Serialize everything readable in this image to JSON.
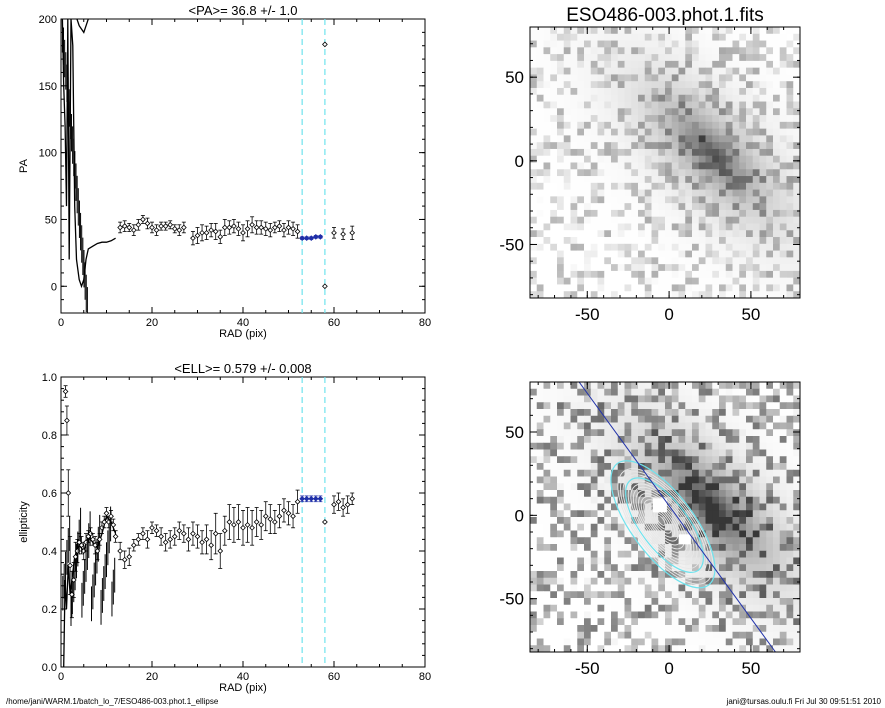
{
  "footer": {
    "path": "/home/jani/WARM.1/batch_lo_7/ESO486-003.phot.1_ellipse",
    "user_timestamp": "jani@tursas.oulu.fi  Fri Jul 30 09:51:51 2010"
  },
  "chart_data": [
    {
      "type": "scatter",
      "title": "<PA>=  36.8 +/-   1.0",
      "xlabel": "RAD (pix)",
      "ylabel": "PA",
      "xlim": [
        0,
        80
      ],
      "ylim": [
        -20,
        200
      ],
      "xticks": [
        0,
        20,
        40,
        60,
        80
      ],
      "yticks": [
        0,
        50,
        100,
        150,
        200
      ],
      "vlines": [
        53,
        58
      ],
      "series": [
        {
          "x": [
            13,
            14,
            15,
            16,
            17,
            18,
            19,
            20,
            21,
            22,
            23,
            24,
            25,
            26,
            27,
            29,
            30,
            31,
            32,
            33,
            34,
            35,
            36,
            37,
            38,
            39,
            40,
            41,
            42,
            43,
            44,
            45,
            46,
            47,
            48,
            49,
            50,
            51,
            52,
            60,
            62,
            64
          ],
          "y": [
            44,
            45,
            44,
            42,
            46,
            50,
            47,
            44,
            42,
            45,
            45,
            46,
            43,
            42,
            44,
            36,
            38,
            40,
            40,
            42,
            41,
            37,
            44,
            44,
            45,
            43,
            40,
            43,
            46,
            44,
            44,
            43,
            42,
            44,
            45,
            42,
            44,
            43,
            41,
            40,
            39,
            40
          ],
          "err": [
            4,
            4,
            3,
            4,
            4,
            3,
            4,
            4,
            4,
            3,
            3,
            3,
            3,
            4,
            4,
            5,
            6,
            6,
            5,
            5,
            6,
            5,
            6,
            5,
            5,
            5,
            6,
            6,
            6,
            5,
            5,
            5,
            5,
            4,
            4,
            5,
            5,
            5,
            5,
            4,
            4,
            5
          ]
        },
        {
          "x": [
            53,
            54,
            55,
            56,
            57
          ],
          "y": [
            36,
            36,
            36,
            37,
            37
          ],
          "err": [
            1,
            1,
            1,
            1,
            1
          ]
        },
        {
          "x": [
            58,
            58
          ],
          "y": [
            181,
            0
          ],
          "err": [
            0,
            0
          ]
        }
      ]
    },
    {
      "type": "scatter",
      "title": "<ELL>= 0.579 +/-  0.008",
      "xlabel": "RAD (pix)",
      "ylabel": "ellipticity",
      "xlim": [
        0,
        80
      ],
      "ylim": [
        0.0,
        1.0
      ],
      "xticks": [
        0,
        20,
        40,
        60,
        80
      ],
      "yticks": [
        0.0,
        0.2,
        0.4,
        0.6,
        0.8,
        1.0
      ],
      "vlines": [
        53,
        58
      ],
      "series": [
        {
          "x": [
            1,
            1.3,
            1.6,
            2,
            2.4,
            2.8,
            3.2,
            3.6,
            4,
            4.5,
            5,
            5.5,
            6,
            6.5,
            7,
            7.5,
            8,
            8.5,
            9,
            9.5,
            10,
            10.5,
            11,
            11.5,
            12,
            13,
            14,
            15,
            16,
            17,
            18,
            19,
            20,
            21,
            22,
            23,
            24,
            25,
            26,
            27,
            28,
            29,
            30,
            31,
            32,
            33,
            34,
            35,
            36,
            37,
            38,
            39,
            40,
            41,
            42,
            43,
            44,
            45,
            46,
            47,
            48,
            49,
            50,
            51,
            52,
            60,
            61,
            62,
            63,
            64
          ],
          "y": [
            0.95,
            0.85,
            0.6,
            0.35,
            0.25,
            0.3,
            0.38,
            0.4,
            0.43,
            0.42,
            0.4,
            0.43,
            0.45,
            0.46,
            0.44,
            0.42,
            0.4,
            0.44,
            0.48,
            0.5,
            0.53,
            0.5,
            0.52,
            0.49,
            0.45,
            0.4,
            0.37,
            0.38,
            0.42,
            0.44,
            0.46,
            0.44,
            0.48,
            0.47,
            0.45,
            0.43,
            0.44,
            0.45,
            0.47,
            0.46,
            0.44,
            0.46,
            0.45,
            0.43,
            0.44,
            0.42,
            0.46,
            0.4,
            0.47,
            0.5,
            0.49,
            0.5,
            0.48,
            0.49,
            0.48,
            0.5,
            0.49,
            0.52,
            0.51,
            0.5,
            0.52,
            0.54,
            0.53,
            0.52,
            0.57,
            0.56,
            0.57,
            0.55,
            0.56,
            0.58
          ],
          "err": [
            0.02,
            0.05,
            0.08,
            0.1,
            0.08,
            0.06,
            0.05,
            0.04,
            0.03,
            0.03,
            0.03,
            0.03,
            0.02,
            0.02,
            0.02,
            0.03,
            0.03,
            0.02,
            0.02,
            0.02,
            0.02,
            0.02,
            0.02,
            0.02,
            0.02,
            0.03,
            0.03,
            0.03,
            0.02,
            0.02,
            0.02,
            0.03,
            0.02,
            0.02,
            0.03,
            0.03,
            0.03,
            0.03,
            0.03,
            0.03,
            0.04,
            0.04,
            0.04,
            0.04,
            0.05,
            0.05,
            0.07,
            0.06,
            0.05,
            0.06,
            0.06,
            0.06,
            0.06,
            0.06,
            0.06,
            0.05,
            0.05,
            0.05,
            0.05,
            0.04,
            0.04,
            0.04,
            0.04,
            0.04,
            0.04,
            0.03,
            0.03,
            0.03,
            0.03,
            0.02
          ]
        },
        {
          "x": [
            53,
            54,
            55,
            56,
            57
          ],
          "y": [
            0.58,
            0.58,
            0.58,
            0.58,
            0.58
          ],
          "err": [
            0.01,
            0.01,
            0.01,
            0.01,
            0.01
          ]
        },
        {
          "x": [
            58
          ],
          "y": [
            0.5
          ],
          "err": [
            0
          ]
        }
      ]
    },
    {
      "type": "heatmap",
      "title": "ESO486-003.phot.1.fits",
      "xlim": [
        -85,
        80
      ],
      "ylim": [
        -82,
        80
      ],
      "xticks": [
        -50,
        0,
        50
      ],
      "yticks": [
        -50,
        0,
        50
      ],
      "overlay": "none"
    },
    {
      "type": "heatmap",
      "title": "",
      "xlim": [
        -85,
        80
      ],
      "ylim": [
        -82,
        80
      ],
      "xticks": [
        -50,
        0,
        50
      ],
      "yticks": [
        -50,
        0,
        50
      ],
      "overlay": "isophote-ellipses"
    }
  ]
}
